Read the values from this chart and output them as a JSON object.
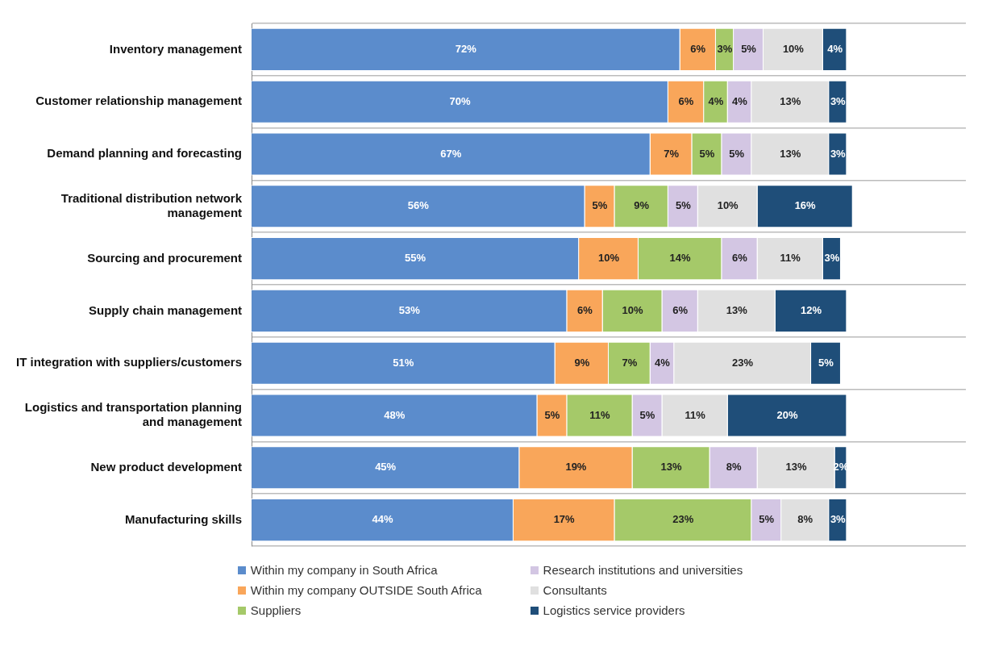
{
  "chart_data": {
    "type": "bar",
    "orientation": "horizontal",
    "stacked": true,
    "legend": "bottom",
    "grid": "y",
    "tick_labels": "y",
    "categories": [
      "Inventory management",
      "Customer relationship management",
      "Demand planning and forecasting",
      "Traditional distribution network management",
      "Sourcing and procurement",
      "Supply chain management",
      "IT integration with suppliers/customers",
      "Logistics and transportation planning and management",
      "New product development",
      "Manufacturing skills"
    ],
    "series": [
      {
        "name": "Within my company in South Africa",
        "color": "#5b8ccc",
        "values": [
          72,
          70,
          67,
          56,
          55,
          53,
          51,
          48,
          45,
          44
        ],
        "value_labels": [
          "72%",
          "70%",
          "67%",
          "56%",
          "55%",
          "53%",
          "51%",
          "48%",
          "45%",
          "44%"
        ]
      },
      {
        "name": "Within my company OUTSIDE South Africa",
        "color": "#f9a65a",
        "values": [
          6,
          6,
          7,
          5,
          10,
          6,
          9,
          5,
          19,
          17
        ],
        "value_labels": [
          "6%",
          "6%",
          "7%",
          "5%",
          "10%",
          "6%",
          "9%",
          "5%",
          "19%",
          "17%"
        ]
      },
      {
        "name": "Suppliers",
        "color": "#a5c969",
        "values": [
          3,
          4,
          5,
          9,
          14,
          10,
          7,
          11,
          13,
          23
        ],
        "value_labels": [
          "3%",
          "4%",
          "5%",
          "9%",
          "14%",
          "10%",
          "7%",
          "11%",
          "13%",
          "23%"
        ]
      },
      {
        "name": "Research institutions and universities",
        "color": "#d3c6e3",
        "values": [
          5,
          4,
          5,
          5,
          6,
          6,
          4,
          5,
          8,
          5
        ],
        "value_labels": [
          "5%",
          "4%",
          "5%",
          "5%",
          "6%",
          "6%",
          "4%",
          "5%",
          "8%",
          "5%"
        ]
      },
      {
        "name": "Consultants",
        "color": "#e0e0e0",
        "values": [
          10,
          13,
          13,
          10,
          11,
          13,
          23,
          11,
          13,
          8
        ],
        "value_labels": [
          "10%",
          "13%",
          "13%",
          "10%",
          "11%",
          "13%",
          "23%",
          "11%",
          "13%",
          "8%"
        ]
      },
      {
        "name": "Logistics service providers",
        "color": "#1f4e79",
        "values": [
          4,
          3,
          3,
          16,
          3,
          12,
          5,
          20,
          2,
          3
        ],
        "value_labels": [
          "4%",
          "3%",
          "3%",
          "16%",
          "3%",
          "12%",
          "5%",
          "20%",
          "2%",
          "3%"
        ]
      }
    ]
  }
}
